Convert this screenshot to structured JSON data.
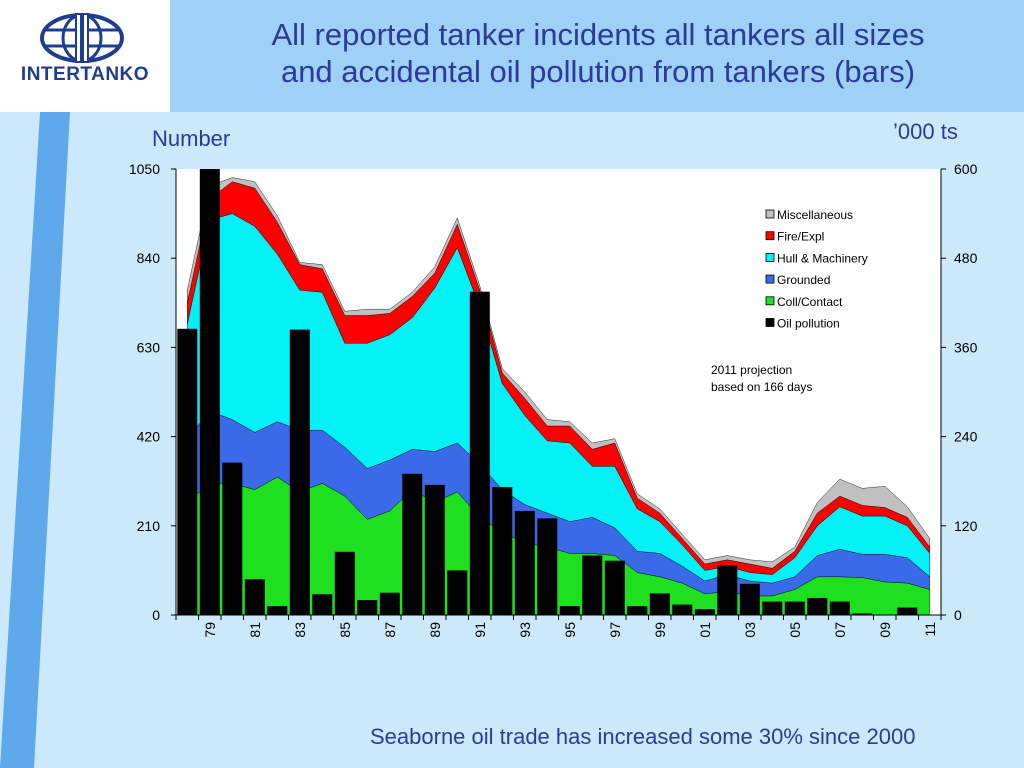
{
  "logo": {
    "name": "INTERTANKO"
  },
  "title_line1": "All reported tanker incidents all tankers all sizes",
  "title_line2": "and accidental oil pollution from tankers (bars)",
  "caption": "Seaborne oil trade has increased some 30% since 2000",
  "colors": {
    "header": "#9fd0f5",
    "background": "#cbe9fb",
    "band": "#5ea9ec",
    "title": "#2b3a9b",
    "logo": "#1f3d8f"
  },
  "chart_data": {
    "type": "area",
    "ylabel": "Number",
    "y2label": "’000 ts",
    "ylim": [
      0,
      1050
    ],
    "y2lim": [
      0,
      600
    ],
    "yticks": [
      0,
      210,
      420,
      630,
      840,
      1050
    ],
    "y2ticks": [
      0,
      120,
      240,
      360,
      480,
      600
    ],
    "tick_labels": [
      "79",
      "81",
      "83",
      "85",
      "87",
      "89",
      "91",
      "93",
      "95",
      "97",
      "99",
      "01",
      "03",
      "05",
      "07",
      "09",
      "11"
    ],
    "x": [
      1978,
      1979,
      1980,
      1981,
      1982,
      1983,
      1984,
      1985,
      1986,
      1987,
      1988,
      1989,
      1990,
      1991,
      1992,
      1993,
      1994,
      1995,
      1996,
      1997,
      1998,
      1999,
      2000,
      2001,
      2002,
      2003,
      2004,
      2005,
      2006,
      2007,
      2008,
      2009,
      2010,
      2011
    ],
    "legend_position": "top-right",
    "series": [
      {
        "name": "Coll/Contact",
        "color": "#1ee01e",
        "values": [
          265,
          310,
          310,
          295,
          325,
          290,
          310,
          280,
          225,
          245,
          295,
          265,
          290,
          230,
          195,
          170,
          160,
          145,
          145,
          140,
          100,
          90,
          75,
          50,
          55,
          45,
          45,
          60,
          90,
          90,
          88,
          78,
          75,
          60
        ]
      },
      {
        "name": "Grounded",
        "color": "#3a6ae8",
        "values": [
          150,
          170,
          150,
          135,
          130,
          145,
          125,
          115,
          120,
          120,
          95,
          120,
          115,
          125,
          100,
          90,
          80,
          75,
          85,
          65,
          50,
          55,
          40,
          30,
          40,
          35,
          30,
          30,
          50,
          65,
          55,
          65,
          60,
          30
        ]
      },
      {
        "name": "Hull & Machinery",
        "color": "#00f2f7",
        "values": [
          270,
          450,
          485,
          485,
          395,
          330,
          325,
          245,
          295,
          295,
          310,
          385,
          460,
          370,
          250,
          210,
          170,
          185,
          120,
          145,
          100,
          75,
          50,
          25,
          20,
          20,
          20,
          45,
          70,
          100,
          90,
          90,
          75,
          55
        ]
      },
      {
        "name": "Fire/Expl",
        "color": "#ff0000",
        "values": [
          50,
          50,
          75,
          90,
          75,
          60,
          55,
          65,
          65,
          50,
          50,
          35,
          55,
          40,
          25,
          40,
          35,
          40,
          40,
          55,
          25,
          20,
          15,
          15,
          15,
          20,
          15,
          15,
          30,
          25,
          25,
          20,
          20,
          15
        ]
      },
      {
        "name": "Miscellaneous",
        "color": "#c0c0c0",
        "values": [
          30,
          30,
          10,
          15,
          15,
          5,
          10,
          10,
          15,
          10,
          10,
          15,
          15,
          10,
          10,
          15,
          15,
          10,
          15,
          10,
          10,
          10,
          10,
          10,
          10,
          10,
          15,
          10,
          25,
          40,
          40,
          50,
          25,
          20
        ]
      }
    ],
    "bars": {
      "name": "Oil pollution",
      "color": "#000000",
      "values": [
        385,
        640,
        205,
        48,
        12,
        384,
        28,
        85,
        20,
        30,
        190,
        175,
        60,
        435,
        172,
        140,
        130,
        12,
        80,
        73,
        12,
        29,
        14,
        8,
        67,
        42,
        18,
        18,
        23,
        18,
        2,
        0,
        10,
        0
      ]
    },
    "annotation": {
      "line1": "2011 projection",
      "line2": "based on 166 days"
    }
  }
}
